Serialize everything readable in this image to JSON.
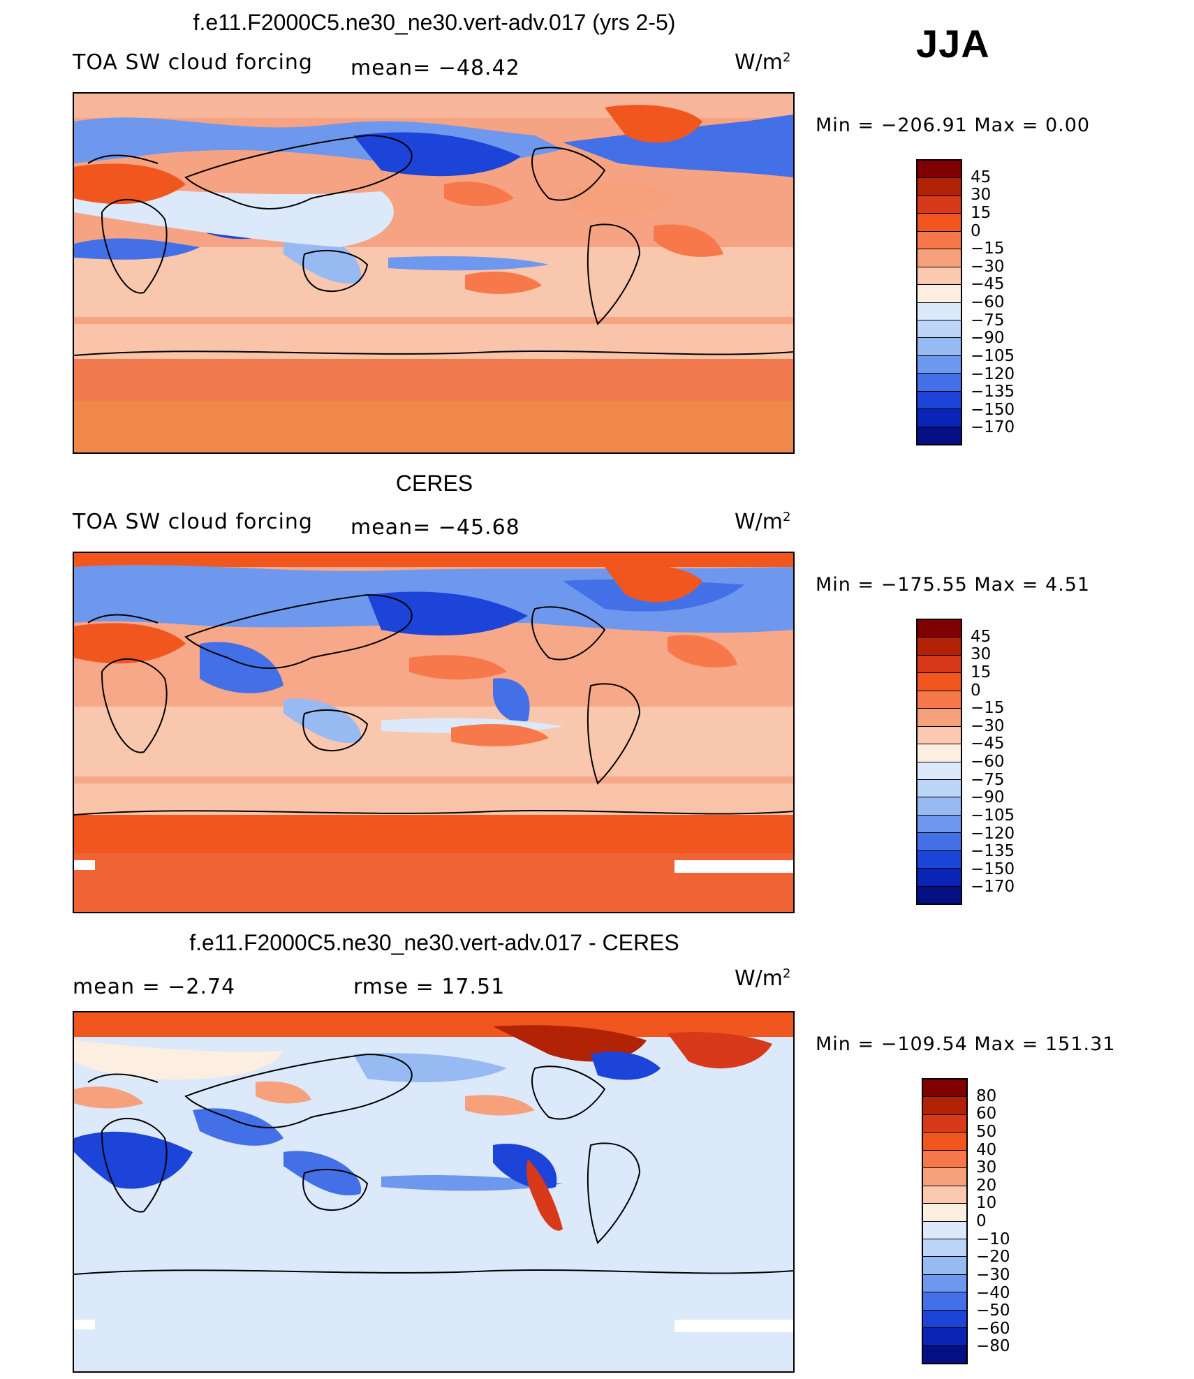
{
  "season": "JJA",
  "panels": [
    {
      "title": "f.e11.F2000C5.ne30_ne30.vert-adv.017 (yrs 2-5)",
      "variable": "TOA SW cloud forcing",
      "stat1": "mean= −48.42",
      "stat2": "",
      "units_base": "W/m",
      "units_exp": "2",
      "minmax": "Min = −206.91 Max = 0.00",
      "colorbar": {
        "labels": [
          "45",
          "30",
          "15",
          "0",
          "−15",
          "−30",
          "−45",
          "−60",
          "−75",
          "−90",
          "−105",
          "−120",
          "−135",
          "−150",
          "−170"
        ],
        "colors": [
          "#7f0000",
          "#b22205",
          "#d8391a",
          "#f2561f",
          "#f7794b",
          "#f7a07c",
          "#fbc9b0",
          "#fdeee2",
          "#dbe9fa",
          "#bdd5f7",
          "#97baf3",
          "#6e98ee",
          "#4470e7",
          "#1d44d9",
          "#0a24b5",
          "#040f83"
        ]
      }
    },
    {
      "title": "CERES",
      "variable": "TOA SW cloud forcing",
      "stat1": "mean= −45.68",
      "stat2": "",
      "units_base": "W/m",
      "units_exp": "2",
      "minmax": "Min = −175.55 Max = 4.51",
      "colorbar": {
        "labels": [
          "45",
          "30",
          "15",
          "0",
          "−15",
          "−30",
          "−45",
          "−60",
          "−75",
          "−90",
          "−105",
          "−120",
          "−135",
          "−150",
          "−170"
        ],
        "colors": [
          "#7f0000",
          "#b22205",
          "#d8391a",
          "#f2561f",
          "#f7794b",
          "#f7a07c",
          "#fbc9b0",
          "#fdeee2",
          "#dbe9fa",
          "#bdd5f7",
          "#97baf3",
          "#6e98ee",
          "#4470e7",
          "#1d44d9",
          "#0a24b5",
          "#040f83"
        ]
      }
    },
    {
      "title": "f.e11.F2000C5.ne30_ne30.vert-adv.017 - CERES",
      "variable": "",
      "stat1": "mean = −2.74",
      "stat2": "rmse = 17.51",
      "units_base": "W/m",
      "units_exp": "2",
      "minmax": "Min = −109.54 Max = 151.31",
      "colorbar": {
        "labels": [
          "80",
          "60",
          "50",
          "40",
          "30",
          "20",
          "10",
          "0",
          "−10",
          "−20",
          "−30",
          "−40",
          "−50",
          "−60",
          "−80"
        ],
        "colors": [
          "#7f0000",
          "#b22205",
          "#d8391a",
          "#f2561f",
          "#f7794b",
          "#f7a07c",
          "#fbc9b0",
          "#fdeee2",
          "#dbe9fa",
          "#bdd5f7",
          "#97baf3",
          "#6e98ee",
          "#4470e7",
          "#1d44d9",
          "#0a24b5",
          "#040f83"
        ]
      }
    }
  ]
}
